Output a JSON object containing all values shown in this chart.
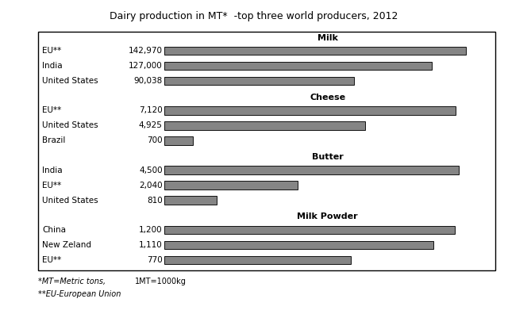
{
  "title": "Dairy production in MT*  -top three world producers, 2012",
  "footnote1": "*MT=Metric tons,",
  "footnote2": "1MT=1000kg",
  "footnote3": "**EU-European Union",
  "bar_color": "#858585",
  "bar_edge_color": "#111111",
  "sections": [
    {
      "name": "Milk",
      "producers": [
        "EU**",
        "India",
        "United States"
      ],
      "values": [
        142970,
        127000,
        90038
      ],
      "labels": [
        "142,970",
        "127,000",
        "90,038"
      ],
      "max_val": 155000
    },
    {
      "name": "Cheese",
      "producers": [
        "EU**",
        "United States",
        "Brazil"
      ],
      "values": [
        7120,
        4925,
        700
      ],
      "labels": [
        "7,120",
        "4,925",
        "700"
      ],
      "max_val": 8000
    },
    {
      "name": "Butter",
      "producers": [
        "India",
        "EU**",
        "United States"
      ],
      "values": [
        4500,
        2040,
        810
      ],
      "labels": [
        "4,500",
        "2,040",
        "810"
      ],
      "max_val": 5000
    },
    {
      "name": "Milk Powder",
      "producers": [
        "China",
        "New Zeland",
        "EU**"
      ],
      "values": [
        1200,
        1110,
        770
      ],
      "labels": [
        "1,200",
        "1,110",
        "770"
      ],
      "max_val": 1350
    }
  ],
  "bg_color": "#ffffff",
  "label_fontsize": 7.5,
  "value_fontsize": 7.5,
  "section_title_fontsize": 8,
  "title_fontsize": 9,
  "footnote_fontsize": 7
}
